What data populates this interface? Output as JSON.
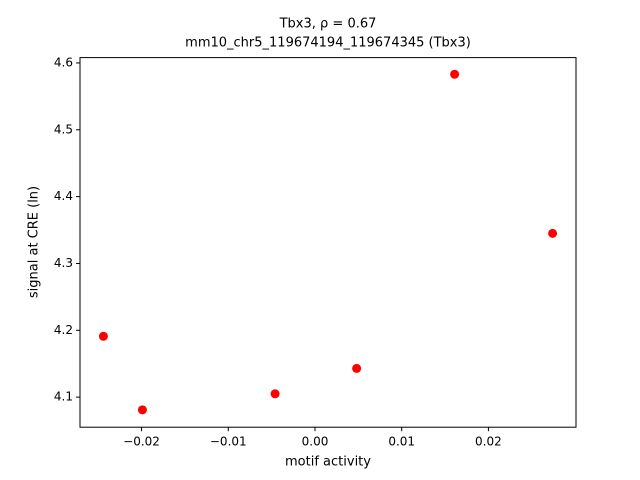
{
  "chart_data": {
    "type": "scatter",
    "title": "Tbx3, ρ = 0.67",
    "subtitle": "mm10_chr5_119674194_119674345 (Tbx3)",
    "x_label": "motif activity",
    "y_label": "signal at CRE (ln)",
    "x": [
      -0.0244,
      -0.0199,
      -0.0046,
      0.0048,
      0.0161,
      0.0274
    ],
    "values": [
      4.191,
      4.081,
      4.105,
      4.143,
      4.583,
      4.345
    ],
    "color": "#ff0000",
    "xlim": [
      -0.0271,
      0.0301
    ],
    "ylim": [
      4.055,
      4.608
    ],
    "xticks": [
      {
        "value": -0.02,
        "label": "−0.02"
      },
      {
        "value": -0.01,
        "label": "−0.01"
      },
      {
        "value": 0,
        "label": "0.00"
      },
      0.01,
      0.02
    ],
    "yticks": [
      4.1,
      4.2,
      4.3,
      4.4,
      4.5,
      4.6
    ],
    "grid": false
  }
}
